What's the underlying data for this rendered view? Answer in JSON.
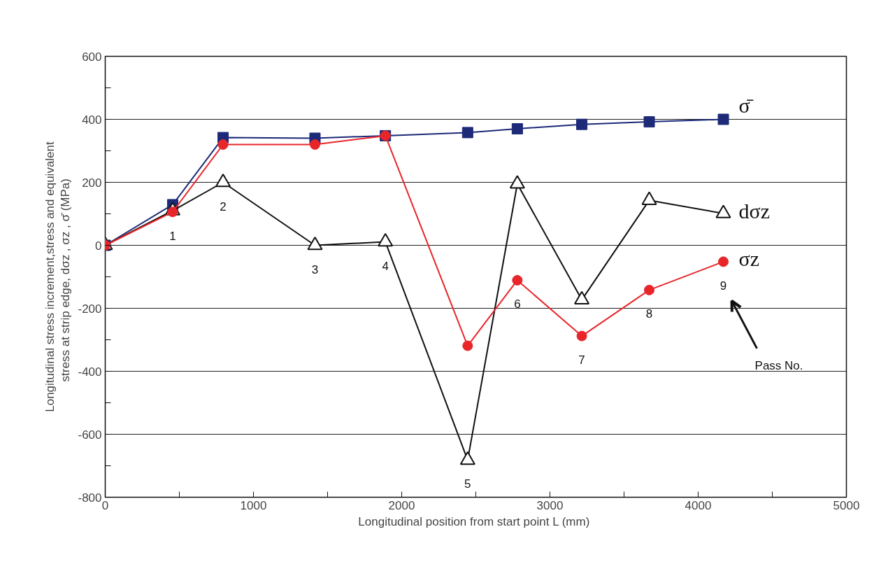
{
  "chart_data": {
    "type": "line",
    "xlabel": "Longitudinal position from start point  L (mm)",
    "ylabel": "Longitudinal stress increment,stress and equivalent\nstress at strip edge, dσz , σz , σ̄   (MPa)",
    "x": [
      0,
      455,
      795,
      1415,
      1890,
      2445,
      2780,
      3215,
      3670,
      4170
    ],
    "series": [
      {
        "name": "σ̄",
        "color": "#1c2a78",
        "marker": "square",
        "values": [
          0,
          129,
          342,
          340,
          348,
          358,
          370,
          384,
          392,
          400
        ]
      },
      {
        "name": "dσz",
        "color": "#111111",
        "marker": "triangle",
        "values": [
          0,
          110,
          200,
          0,
          11,
          -682,
          195,
          -173,
          143,
          101
        ]
      },
      {
        "name": "σz",
        "color": "#e8262a",
        "marker": "circle",
        "values": [
          0,
          106,
          320,
          320,
          348,
          -319,
          -111,
          -288,
          -142,
          -52
        ]
      }
    ],
    "xlim": [
      0,
      5000
    ],
    "xticks": [
      0,
      {
        "value": 500,
        "label": null
      },
      1000,
      {
        "value": 1500,
        "label": null
      },
      2000,
      {
        "value": 2500,
        "label": null
      },
      3000,
      {
        "value": 3500,
        "label": null
      },
      4000,
      {
        "value": 4500,
        "label": null
      },
      5000
    ],
    "ylim": [
      -800,
      600
    ],
    "yticks": [
      -800,
      {
        "value": -700,
        "label": null
      },
      -600,
      {
        "value": -500,
        "label": null
      },
      -400,
      {
        "value": -300,
        "label": null
      },
      -200,
      {
        "value": -100,
        "label": null
      },
      0,
      {
        "value": 100,
        "label": null
      },
      200,
      {
        "value": 300,
        "label": null
      },
      400,
      {
        "value": 500,
        "label": null
      },
      600
    ],
    "grid": "y",
    "legend": false,
    "annotations": [
      {
        "text": "1",
        "x": 455,
        "y": 106
      },
      {
        "text": "2",
        "x": 795,
        "y": 200
      },
      {
        "text": "3",
        "x": 1415,
        "y": 0
      },
      {
        "text": "4",
        "x": 1890,
        "y": 11
      },
      {
        "text": "5",
        "x": 2445,
        "y": -682
      },
      {
        "text": "6",
        "x": 2780,
        "y": -111
      },
      {
        "text": "7",
        "x": 3215,
        "y": -288
      },
      {
        "text": "8",
        "x": 3670,
        "y": -142
      },
      {
        "text": "9",
        "x": 4170,
        "y": -52
      },
      "Pass No."
    ]
  }
}
